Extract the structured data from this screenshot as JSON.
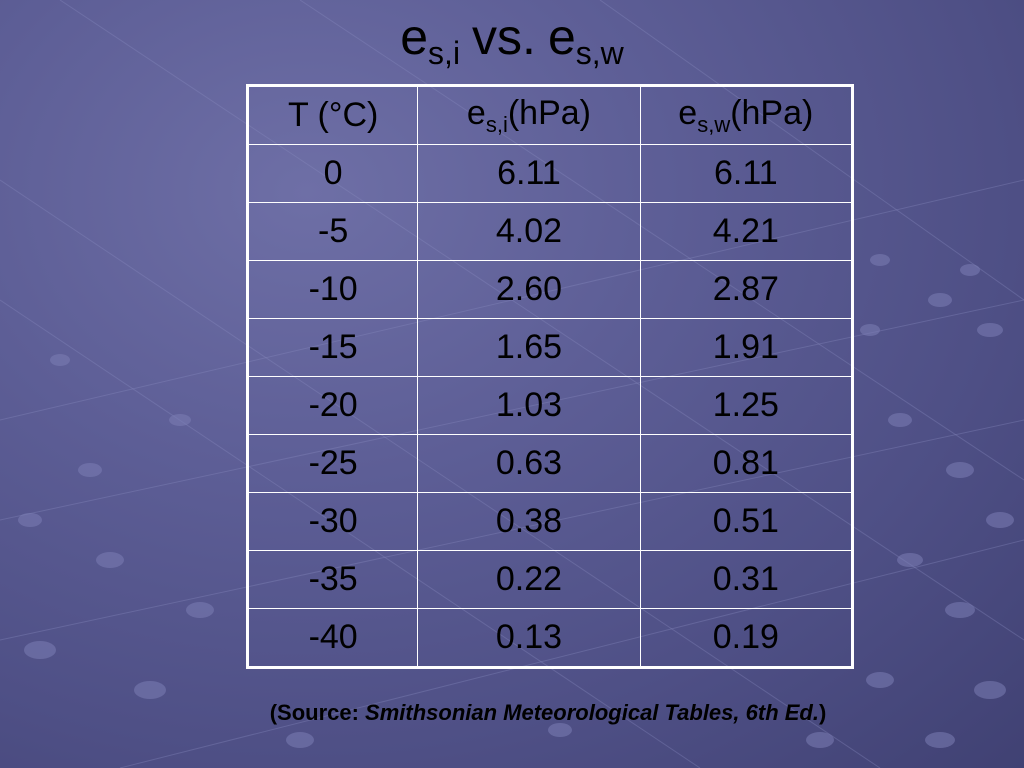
{
  "title": {
    "left_var": "e",
    "left_sub": "s,i",
    "vs": "vs.",
    "right_var": "e",
    "right_sub": "s,w"
  },
  "table": {
    "headers": {
      "col1": "T (°C)",
      "col2_var": "e",
      "col2_sub": "s,i",
      "col2_unit": "(hPa)",
      "col3_var": "e",
      "col3_sub": "s,w",
      "col3_unit": "(hPa)"
    },
    "rows": [
      [
        "0",
        "6.11",
        "6.11"
      ],
      [
        "-5",
        "4.02",
        "4.21"
      ],
      [
        "-10",
        "2.60",
        "2.87"
      ],
      [
        "-15",
        "1.65",
        "1.91"
      ],
      [
        "-20",
        "1.03",
        "1.25"
      ],
      [
        "-25",
        "0.63",
        "0.81"
      ],
      [
        "-30",
        "0.38",
        "0.51"
      ],
      [
        "-35",
        "0.22",
        "0.31"
      ],
      [
        "-40",
        "0.13",
        "0.19"
      ]
    ]
  },
  "source": {
    "prefix": "(Source: ",
    "title": "Smithsonian Meteorological Tables, 6th Ed.",
    "suffix": ")"
  },
  "colors": {
    "background": "#5d5e96",
    "table_border": "#ffffff",
    "text": "#000000"
  }
}
